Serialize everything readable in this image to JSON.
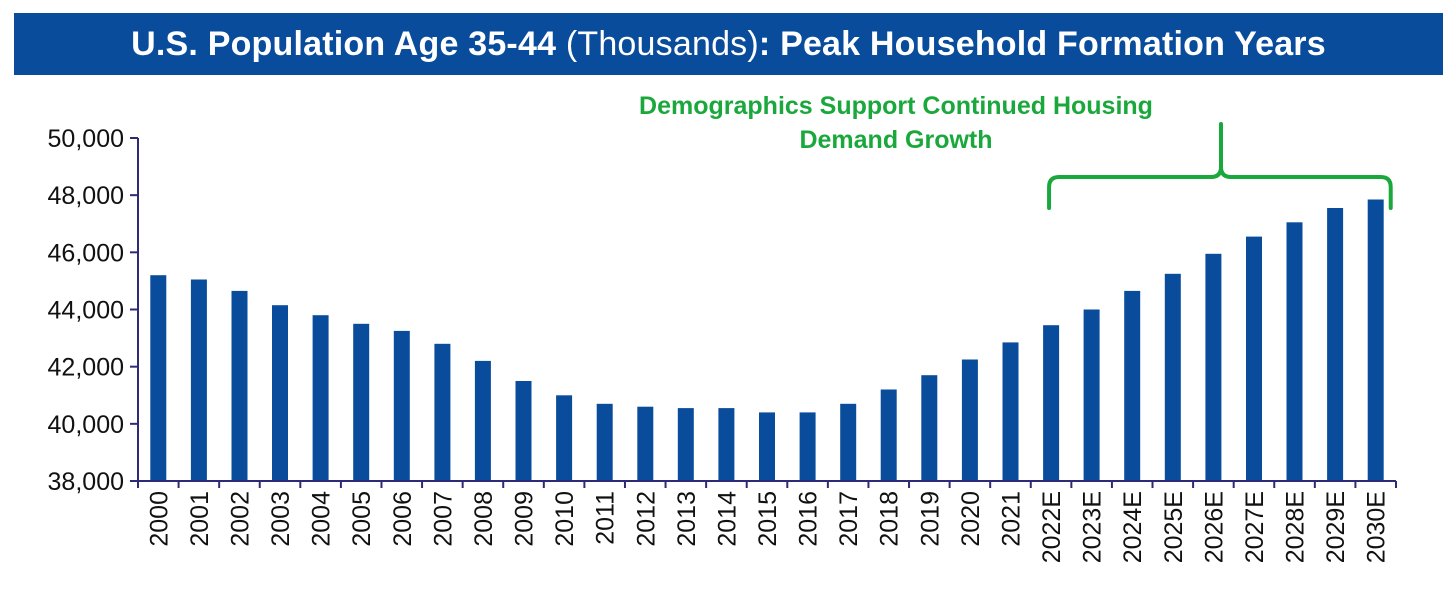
{
  "title": {
    "part1": "U.S. Population Age 35-44",
    "part2": " (Thousands)",
    "part3": ": Peak Household Formation Years"
  },
  "annotation": {
    "line1": "Demographics Support Continued Housing",
    "line2": "Demand Growth",
    "bracket_from": "2022E",
    "bracket_to": "2030E"
  },
  "colors": {
    "bar": "#0a4c9c",
    "title_bg": "#0a4c9c",
    "axis": "#2e2a78",
    "annotation": "#1aa83c"
  },
  "chart_data": {
    "type": "bar",
    "title": "U.S. Population Age 35-44 (Thousands): Peak Household Formation Years",
    "xlabel": "",
    "ylabel": "",
    "ylim": [
      38000,
      50000
    ],
    "yticks": [
      38000,
      40000,
      42000,
      44000,
      46000,
      48000,
      50000
    ],
    "ytick_labels": [
      "38,000",
      "40,000",
      "42,000",
      "44,000",
      "46,000",
      "48,000",
      "50,000"
    ],
    "grid": false,
    "categories": [
      "2000",
      "2001",
      "2002",
      "2003",
      "2004",
      "2005",
      "2006",
      "2007",
      "2008",
      "2009",
      "2010",
      "2011",
      "2012",
      "2013",
      "2014",
      "2015",
      "2016",
      "2017",
      "2018",
      "2019",
      "2020",
      "2021",
      "2022E",
      "2023E",
      "2024E",
      "2025E",
      "2026E",
      "2027E",
      "2028E",
      "2029E",
      "2030E"
    ],
    "values": [
      45200,
      45050,
      44650,
      44150,
      43800,
      43500,
      43250,
      42800,
      42200,
      41500,
      41000,
      40700,
      40600,
      40550,
      40550,
      40400,
      40400,
      40700,
      41200,
      41700,
      42250,
      42850,
      43450,
      44000,
      44650,
      45250,
      45950,
      46550,
      47050,
      47550,
      47850
    ]
  }
}
